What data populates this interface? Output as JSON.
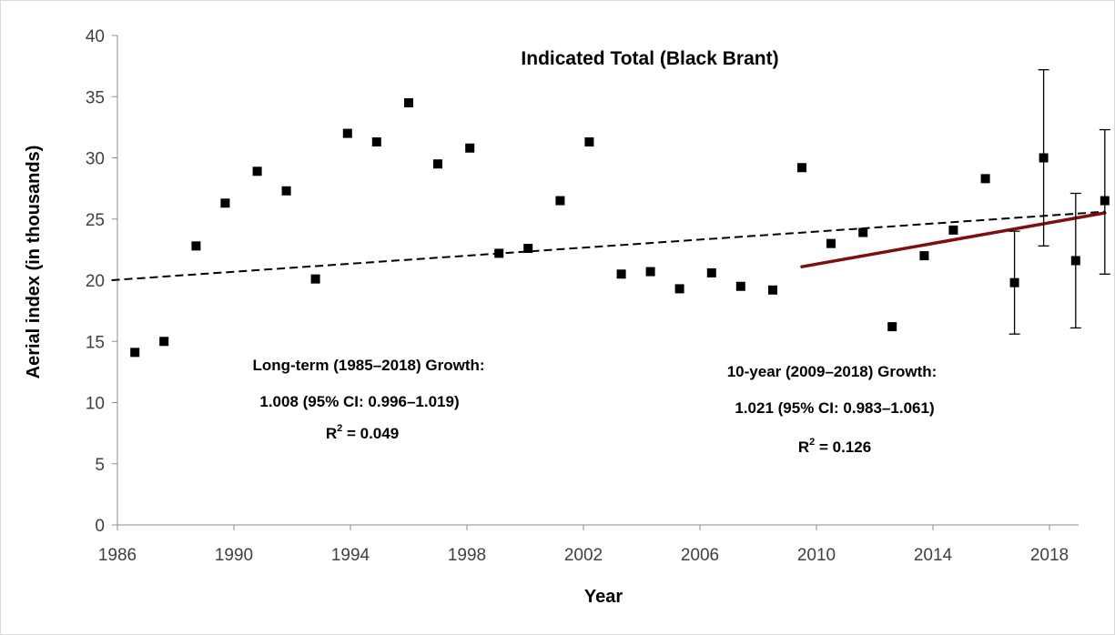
{
  "chart_data": {
    "type": "scatter",
    "title": "Indicated Total  (Black Brant)",
    "xlabel": "Year",
    "ylabel": "Aerial index (in thousands)",
    "xlim": [
      1986,
      2019
    ],
    "ylim": [
      0,
      40
    ],
    "x_ticks": [
      "1986",
      "1990",
      "1994",
      "1998",
      "2002",
      "2006",
      "2010",
      "2014",
      "2018"
    ],
    "y_ticks": [
      "0",
      "5",
      "10",
      "15",
      "20",
      "25",
      "30",
      "35",
      "40"
    ],
    "grid": false,
    "legend": "none",
    "series": [
      {
        "points": [
          {
            "x": 1986.6,
            "y": 14.1
          },
          {
            "x": 1987.6,
            "y": 15.0
          },
          {
            "x": 1988.7,
            "y": 22.8
          },
          {
            "x": 1989.7,
            "y": 26.3
          },
          {
            "x": 1990.8,
            "y": 28.9
          },
          {
            "x": 1991.8,
            "y": 27.3
          },
          {
            "x": 1992.8,
            "y": 20.1
          },
          {
            "x": 1993.9,
            "y": 32.0
          },
          {
            "x": 1994.9,
            "y": 31.3
          },
          {
            "x": 1996.0,
            "y": 34.5
          },
          {
            "x": 1997.0,
            "y": 29.5
          },
          {
            "x": 1998.1,
            "y": 30.8
          },
          {
            "x": 1999.1,
            "y": 22.2
          },
          {
            "x": 2000.1,
            "y": 22.6
          },
          {
            "x": 2001.2,
            "y": 26.5
          },
          {
            "x": 2002.2,
            "y": 31.3
          },
          {
            "x": 2003.3,
            "y": 20.5
          },
          {
            "x": 2004.3,
            "y": 20.7
          },
          {
            "x": 2005.3,
            "y": 19.3
          },
          {
            "x": 2006.4,
            "y": 20.6
          },
          {
            "x": 2007.4,
            "y": 19.5
          },
          {
            "x": 2008.5,
            "y": 19.2
          },
          {
            "x": 2009.5,
            "y": 29.2
          },
          {
            "x": 2010.5,
            "y": 23.0
          },
          {
            "x": 2011.6,
            "y": 23.9
          },
          {
            "x": 2012.6,
            "y": 16.2
          },
          {
            "x": 2013.7,
            "y": 22.0
          },
          {
            "x": 2014.7,
            "y": 24.1
          },
          {
            "x": 2015.8,
            "y": 28.3
          },
          {
            "x": 2016.8,
            "y": 19.8,
            "err_low": 15.6,
            "err_high": 24.0
          },
          {
            "x": 2017.8,
            "y": 30.0,
            "err_low": 22.8,
            "err_high": 37.2
          },
          {
            "x": 2018.9,
            "y": 21.6,
            "err_low": 16.1,
            "err_high": 27.1
          },
          {
            "x": 2019.9,
            "y": 26.5,
            "err_low": 20.5,
            "err_high": 32.3
          }
        ]
      }
    ],
    "trend_lines": [
      {
        "style": "dashed",
        "color": "#000000",
        "x": [
          1985.8,
          2019.9
        ],
        "y": [
          20.0,
          25.6
        ]
      },
      {
        "style": "solid",
        "color": "#7f0f0f",
        "x": [
          2009.5,
          2019.9
        ],
        "y": [
          21.1,
          25.5
        ]
      }
    ],
    "annotations": {
      "long_term_line1": "Long-term (1985–2018) Growth:",
      "long_term_line2": "1.008  (95% CI: 0.996–1.019)",
      "long_term_r2_prefix": "R",
      "long_term_r2_sup": "2",
      "long_term_r2_value": " = 0.049",
      "ten_year_line1": "10-year (2009–2018) Growth:",
      "ten_year_line2": "1.021  (95% CI: 0.983–1.061)",
      "ten_year_r2_prefix": "R",
      "ten_year_r2_sup": "2",
      "ten_year_r2_value": " = 0.126"
    }
  }
}
